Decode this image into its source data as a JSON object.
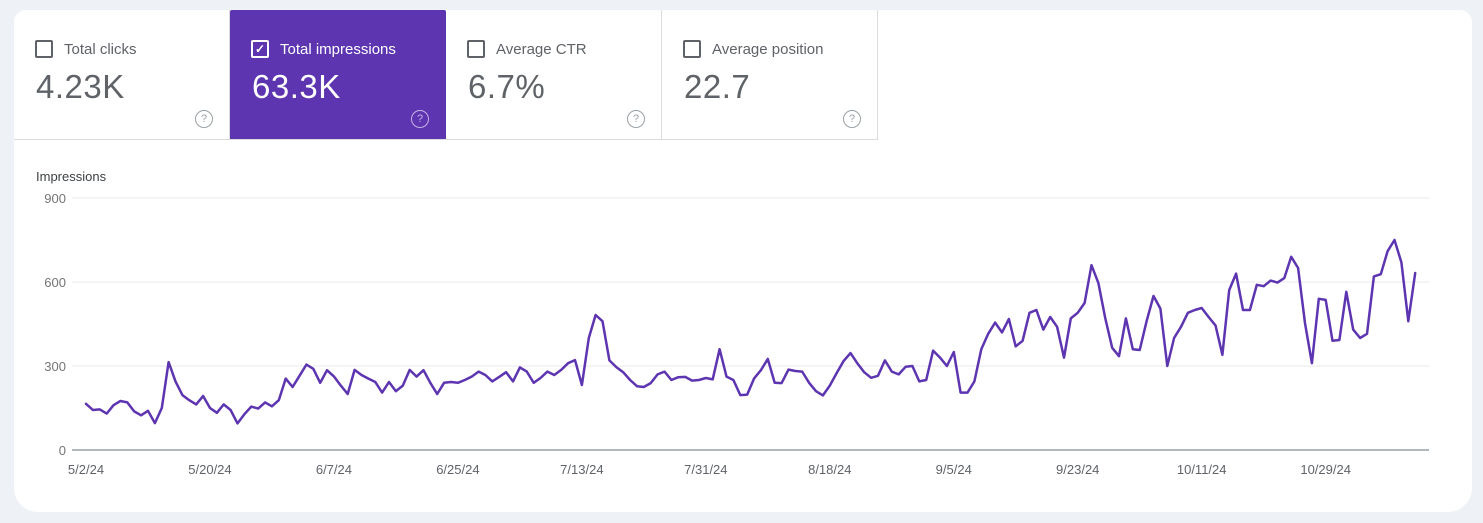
{
  "metrics_cards": [
    {
      "label": "Total clicks",
      "value": "4.23K",
      "checked": false,
      "selected": false
    },
    {
      "label": "Total impressions",
      "value": "63.3K",
      "checked": true,
      "selected": true
    },
    {
      "label": "Average CTR",
      "value": "6.7%",
      "checked": false,
      "selected": false
    },
    {
      "label": "Average position",
      "value": "22.7",
      "checked": false,
      "selected": false
    }
  ],
  "colors": {
    "selected_card_bg": "#5e35b1",
    "line": "#5e35b1",
    "card_border": "#dadce0",
    "grid_line": "#e8eaed",
    "axis_line": "#9aa0a6",
    "text_gray": "#5f6368",
    "page_bg": "#eef1f5"
  },
  "chart_data": {
    "type": "line",
    "title": "Impressions",
    "ylabel": "Impressions",
    "ylim": [
      0,
      900
    ],
    "grid": "horizontal",
    "legend": "none",
    "y_tick_labels": [
      "900",
      "600",
      "300",
      "0"
    ],
    "x_tick_labels": [
      "5/2/24",
      "5/20/24",
      "6/7/24",
      "6/25/24",
      "7/13/24",
      "7/31/24",
      "8/18/24",
      "9/5/24",
      "9/23/24",
      "10/11/24",
      "10/29/24"
    ],
    "x_tick_interval_days": 18,
    "series": [
      {
        "name": "Impressions",
        "values": [
          165,
          143,
          145,
          130,
          160,
          175,
          170,
          138,
          124,
          140,
          96,
          150,
          314,
          245,
          196,
          178,
          163,
          193,
          150,
          133,
          163,
          143,
          95,
          128,
          155,
          148,
          170,
          156,
          178,
          255,
          225,
          265,
          305,
          290,
          240,
          285,
          263,
          230,
          200,
          286,
          268,
          255,
          243,
          205,
          243,
          210,
          230,
          286,
          262,
          285,
          240,
          200,
          240,
          243,
          240,
          250,
          262,
          280,
          268,
          245,
          261,
          278,
          245,
          295,
          280,
          240,
          257,
          280,
          268,
          286,
          310,
          321,
          232,
          400,
          482,
          460,
          320,
          296,
          278,
          250,
          228,
          225,
          239,
          270,
          280,
          250,
          260,
          261,
          248,
          250,
          257,
          252,
          360,
          262,
          250,
          196,
          198,
          255,
          285,
          325,
          240,
          239,
          287,
          282,
          280,
          240,
          210,
          195,
          230,
          275,
          318,
          346,
          310,
          278,
          258,
          265,
          320,
          280,
          270,
          297,
          300,
          245,
          250,
          355,
          330,
          300,
          350,
          205,
          205,
          245,
          360,
          415,
          455,
          420,
          468,
          370,
          390,
          490,
          500,
          430,
          475,
          440,
          330,
          470,
          490,
          525,
          660,
          596,
          470,
          365,
          335,
          470,
          360,
          357,
          460,
          550,
          505,
          300,
          400,
          440,
          490,
          500,
          507,
          475,
          445,
          340,
          571,
          630,
          500,
          500,
          590,
          585,
          605,
          598,
          614,
          690,
          650,
          453,
          310,
          540,
          536,
          390,
          393,
          565,
          430,
          400,
          415,
          620,
          628,
          710,
          750,
          670,
          460,
          632
        ]
      }
    ]
  }
}
